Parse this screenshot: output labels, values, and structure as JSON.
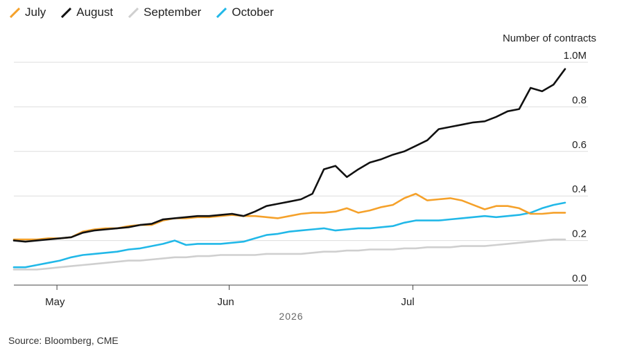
{
  "chart_data": {
    "type": "line",
    "ylabel": "Number of contracts",
    "y_ticks": [
      {
        "value": 0.0,
        "label": "0.0"
      },
      {
        "value": 0.2,
        "label": "0.2"
      },
      {
        "value": 0.4,
        "label": "0.4"
      },
      {
        "value": 0.6,
        "label": "0.6"
      },
      {
        "value": 0.8,
        "label": "0.8"
      },
      {
        "value": 1.0,
        "label": "1.0M"
      }
    ],
    "ylim": [
      0,
      1.0
    ],
    "x_ticks": [
      {
        "value": 8.5,
        "label": "May"
      },
      {
        "value": 38.5,
        "label": "Jun"
      },
      {
        "value": 70.5,
        "label": "Jul"
      }
    ],
    "xlim": [
      1,
      97
    ],
    "xlabel": "2026",
    "grid": "horizontal",
    "legend_position": "top-left",
    "series": [
      {
        "name": "July",
        "color": "#f5a12a",
        "points": [
          [
            1,
            0.205
          ],
          [
            3,
            0.205
          ],
          [
            5,
            0.205
          ],
          [
            7,
            0.21
          ],
          [
            9,
            0.21
          ],
          [
            11,
            0.215
          ],
          [
            13,
            0.24
          ],
          [
            15,
            0.25
          ],
          [
            17,
            0.255
          ],
          [
            19,
            0.255
          ],
          [
            21,
            0.265
          ],
          [
            23,
            0.27
          ],
          [
            25,
            0.27
          ],
          [
            27,
            0.29
          ],
          [
            29,
            0.3
          ],
          [
            31,
            0.3
          ],
          [
            33,
            0.305
          ],
          [
            35,
            0.305
          ],
          [
            37,
            0.31
          ],
          [
            39,
            0.315
          ],
          [
            41,
            0.31
          ],
          [
            43,
            0.31
          ],
          [
            45,
            0.305
          ],
          [
            47,
            0.3
          ],
          [
            49,
            0.31
          ],
          [
            51,
            0.32
          ],
          [
            53,
            0.325
          ],
          [
            55,
            0.325
          ],
          [
            57,
            0.33
          ],
          [
            59,
            0.345
          ],
          [
            61,
            0.325
          ],
          [
            63,
            0.335
          ],
          [
            65,
            0.35
          ],
          [
            67,
            0.36
          ],
          [
            69,
            0.39
          ],
          [
            71,
            0.41
          ],
          [
            73,
            0.38
          ],
          [
            75,
            0.385
          ],
          [
            77,
            0.39
          ],
          [
            79,
            0.38
          ],
          [
            81,
            0.36
          ],
          [
            83,
            0.34
          ],
          [
            85,
            0.355
          ],
          [
            87,
            0.355
          ],
          [
            89,
            0.345
          ],
          [
            91,
            0.32
          ],
          [
            93,
            0.32
          ],
          [
            95,
            0.325
          ],
          [
            97,
            0.325
          ]
        ]
      },
      {
        "name": "August",
        "color": "#111111",
        "points": [
          [
            1,
            0.2
          ],
          [
            3,
            0.195
          ],
          [
            5,
            0.2
          ],
          [
            7,
            0.205
          ],
          [
            9,
            0.21
          ],
          [
            11,
            0.215
          ],
          [
            13,
            0.235
          ],
          [
            15,
            0.245
          ],
          [
            17,
            0.25
          ],
          [
            19,
            0.255
          ],
          [
            21,
            0.26
          ],
          [
            23,
            0.27
          ],
          [
            25,
            0.275
          ],
          [
            27,
            0.295
          ],
          [
            29,
            0.3
          ],
          [
            31,
            0.305
          ],
          [
            33,
            0.31
          ],
          [
            35,
            0.31
          ],
          [
            37,
            0.315
          ],
          [
            39,
            0.32
          ],
          [
            41,
            0.31
          ],
          [
            43,
            0.33
          ],
          [
            45,
            0.355
          ],
          [
            47,
            0.365
          ],
          [
            49,
            0.375
          ],
          [
            51,
            0.385
          ],
          [
            53,
            0.41
          ],
          [
            55,
            0.52
          ],
          [
            57,
            0.535
          ],
          [
            59,
            0.485
          ],
          [
            61,
            0.52
          ],
          [
            63,
            0.55
          ],
          [
            65,
            0.565
          ],
          [
            67,
            0.585
          ],
          [
            69,
            0.6
          ],
          [
            71,
            0.625
          ],
          [
            73,
            0.65
          ],
          [
            75,
            0.7
          ],
          [
            77,
            0.71
          ],
          [
            79,
            0.72
          ],
          [
            81,
            0.73
          ],
          [
            83,
            0.735
          ],
          [
            85,
            0.755
          ],
          [
            87,
            0.78
          ],
          [
            89,
            0.79
          ],
          [
            91,
            0.885
          ],
          [
            93,
            0.87
          ],
          [
            95,
            0.9
          ],
          [
            97,
            0.97
          ]
        ]
      },
      {
        "name": "September",
        "color": "#cfcfcf",
        "points": [
          [
            1,
            0.07
          ],
          [
            3,
            0.07
          ],
          [
            5,
            0.07
          ],
          [
            7,
            0.075
          ],
          [
            9,
            0.08
          ],
          [
            11,
            0.085
          ],
          [
            13,
            0.09
          ],
          [
            15,
            0.095
          ],
          [
            17,
            0.1
          ],
          [
            19,
            0.105
          ],
          [
            21,
            0.11
          ],
          [
            23,
            0.11
          ],
          [
            25,
            0.115
          ],
          [
            27,
            0.12
          ],
          [
            29,
            0.125
          ],
          [
            31,
            0.125
          ],
          [
            33,
            0.13
          ],
          [
            35,
            0.13
          ],
          [
            37,
            0.135
          ],
          [
            39,
            0.135
          ],
          [
            41,
            0.135
          ],
          [
            43,
            0.135
          ],
          [
            45,
            0.14
          ],
          [
            47,
            0.14
          ],
          [
            49,
            0.14
          ],
          [
            51,
            0.14
          ],
          [
            53,
            0.145
          ],
          [
            55,
            0.15
          ],
          [
            57,
            0.15
          ],
          [
            59,
            0.155
          ],
          [
            61,
            0.155
          ],
          [
            63,
            0.16
          ],
          [
            65,
            0.16
          ],
          [
            67,
            0.16
          ],
          [
            69,
            0.165
          ],
          [
            71,
            0.165
          ],
          [
            73,
            0.17
          ],
          [
            75,
            0.17
          ],
          [
            77,
            0.17
          ],
          [
            79,
            0.175
          ],
          [
            81,
            0.175
          ],
          [
            83,
            0.175
          ],
          [
            85,
            0.18
          ],
          [
            87,
            0.185
          ],
          [
            89,
            0.19
          ],
          [
            91,
            0.195
          ],
          [
            93,
            0.2
          ],
          [
            95,
            0.205
          ],
          [
            97,
            0.205
          ]
        ]
      },
      {
        "name": "October",
        "color": "#21b8e8",
        "points": [
          [
            1,
            0.08
          ],
          [
            3,
            0.08
          ],
          [
            5,
            0.09
          ],
          [
            7,
            0.1
          ],
          [
            9,
            0.11
          ],
          [
            11,
            0.125
          ],
          [
            13,
            0.135
          ],
          [
            15,
            0.14
          ],
          [
            17,
            0.145
          ],
          [
            19,
            0.15
          ],
          [
            21,
            0.16
          ],
          [
            23,
            0.165
          ],
          [
            25,
            0.175
          ],
          [
            27,
            0.185
          ],
          [
            29,
            0.2
          ],
          [
            31,
            0.18
          ],
          [
            33,
            0.185
          ],
          [
            35,
            0.185
          ],
          [
            37,
            0.185
          ],
          [
            39,
            0.19
          ],
          [
            41,
            0.195
          ],
          [
            43,
            0.21
          ],
          [
            45,
            0.225
          ],
          [
            47,
            0.23
          ],
          [
            49,
            0.24
          ],
          [
            51,
            0.245
          ],
          [
            53,
            0.25
          ],
          [
            55,
            0.255
          ],
          [
            57,
            0.245
          ],
          [
            59,
            0.25
          ],
          [
            61,
            0.255
          ],
          [
            63,
            0.255
          ],
          [
            65,
            0.26
          ],
          [
            67,
            0.265
          ],
          [
            69,
            0.28
          ],
          [
            71,
            0.29
          ],
          [
            73,
            0.29
          ],
          [
            75,
            0.29
          ],
          [
            77,
            0.295
          ],
          [
            79,
            0.3
          ],
          [
            81,
            0.305
          ],
          [
            83,
            0.31
          ],
          [
            85,
            0.305
          ],
          [
            87,
            0.31
          ],
          [
            89,
            0.315
          ],
          [
            91,
            0.325
          ],
          [
            93,
            0.345
          ],
          [
            95,
            0.36
          ],
          [
            97,
            0.37
          ]
        ]
      }
    ]
  },
  "source": "Source: Bloomberg, CME"
}
